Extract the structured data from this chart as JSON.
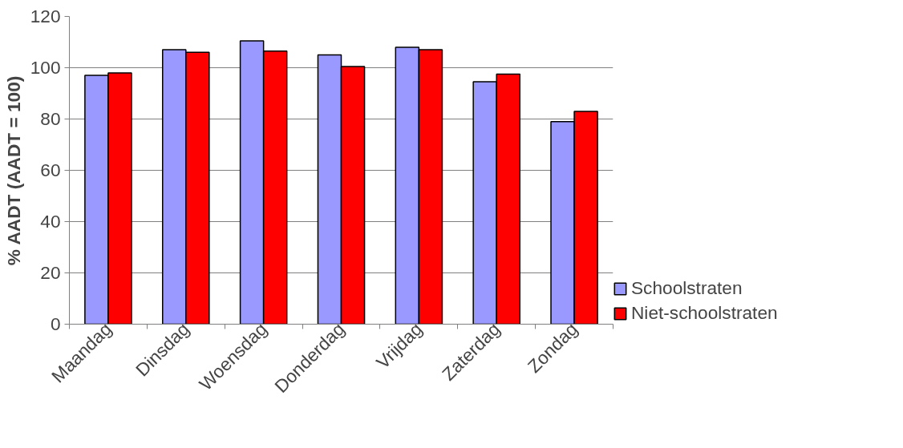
{
  "chart_data": {
    "type": "bar",
    "ylabel": "% AADT (AADT = 100)",
    "categories": [
      "Maandag",
      "Dinsdag",
      "Woensdag",
      "Donderdag",
      "Vrijdag",
      "Zaterdag",
      "Zondag"
    ],
    "series": [
      {
        "name": "Schoolstraten",
        "color": "#9999ff",
        "values": [
          97,
          107,
          110.5,
          105,
          108,
          94.5,
          79
        ]
      },
      {
        "name": "Niet-schoolstraten",
        "color": "#ff0000",
        "values": [
          98,
          106,
          106.5,
          100.5,
          107,
          97.5,
          83
        ]
      }
    ],
    "ylim": [
      0,
      120
    ],
    "yticks": [
      0,
      20,
      40,
      60,
      80,
      100,
      120
    ],
    "grid": "y",
    "legend": "right"
  }
}
